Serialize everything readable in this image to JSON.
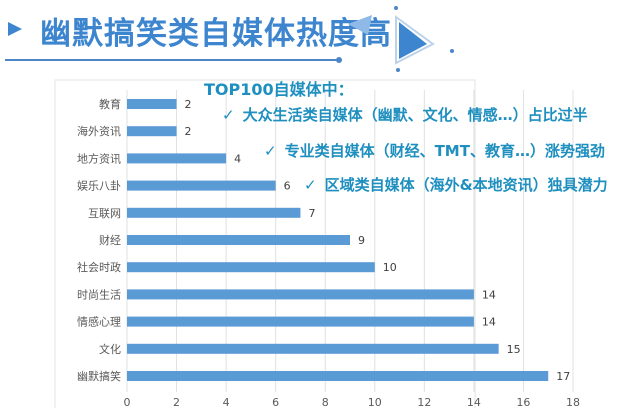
{
  "title": "幽默搞笑类自媒体热度高",
  "notes": {
    "heading": "TOP100自媒体中：",
    "items": [
      "大众生活类自媒体（幽默、文化、情感…）占比过半",
      "专业类自媒体（财经、TMT、教育…）涨势强劲",
      "区域类自媒体（海外&本地资讯）独具潜力"
    ],
    "check": "✓"
  },
  "chart_data": {
    "type": "bar",
    "orientation": "horizontal",
    "categories": [
      "教育",
      "海外资讯",
      "地方资讯",
      "娱乐八卦",
      "互联网",
      "财经",
      "社会时政",
      "时尚生活",
      "情感心理",
      "文化",
      "幽默搞笑"
    ],
    "values": [
      2,
      2,
      4,
      6,
      7,
      9,
      10,
      14,
      14,
      15,
      17
    ],
    "xlim": [
      0,
      18
    ],
    "xticks": [
      0,
      2,
      4,
      6,
      8,
      10,
      12,
      14,
      16,
      18
    ],
    "grid": true,
    "bar_color": "#5b9bd5"
  }
}
